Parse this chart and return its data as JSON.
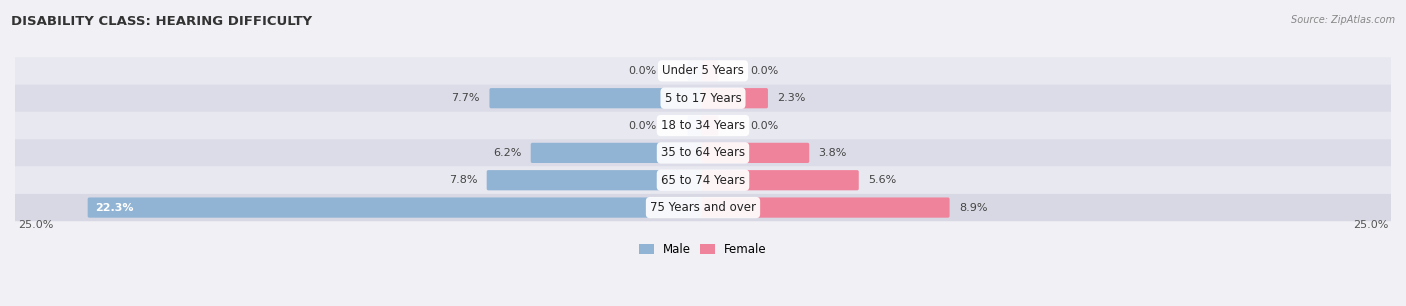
{
  "title": "DISABILITY CLASS: HEARING DIFFICULTY",
  "source": "Source: ZipAtlas.com",
  "categories": [
    "Under 5 Years",
    "5 to 17 Years",
    "18 to 34 Years",
    "35 to 64 Years",
    "65 to 74 Years",
    "75 Years and over"
  ],
  "male_values": [
    0.0,
    7.7,
    0.0,
    6.2,
    7.8,
    22.3
  ],
  "female_values": [
    0.0,
    2.3,
    0.0,
    3.8,
    5.6,
    8.9
  ],
  "male_color": "#92b4d4",
  "female_color": "#f0839c",
  "male_label": "Male",
  "female_label": "Female",
  "x_max": 25.0,
  "axis_label_left": "25.0%",
  "axis_label_right": "25.0%",
  "bg_color": "#f0f0f5",
  "row_color_light": "#e8e8f0",
  "row_color_dark": "#d8d8e4",
  "title_fontsize": 9.5,
  "source_fontsize": 7,
  "label_fontsize": 8,
  "value_fontsize": 8,
  "category_fontsize": 8.5,
  "zero_stub": 0.5
}
